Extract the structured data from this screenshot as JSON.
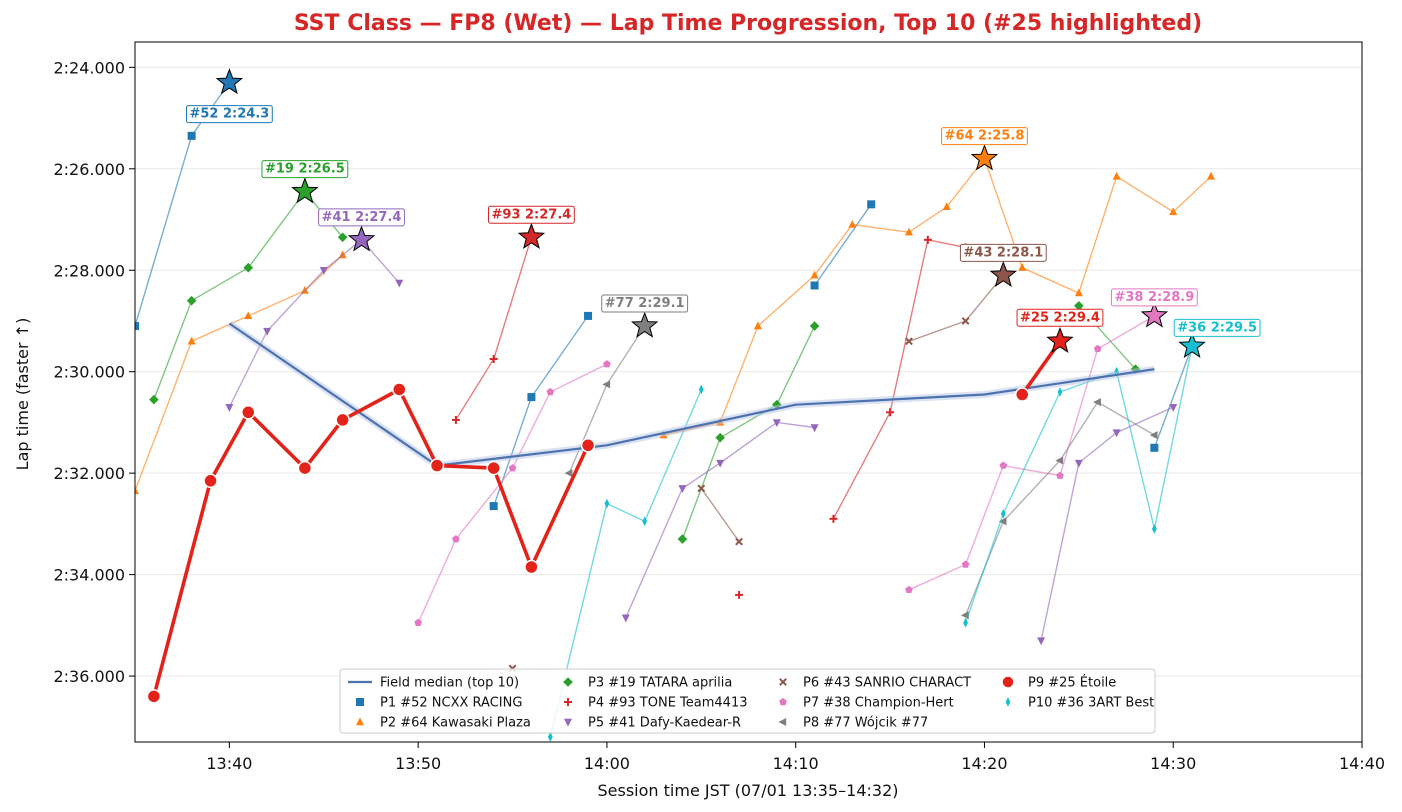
{
  "chart_data": {
    "type": "line",
    "title": "SST Class — FP8 (Wet) — Lap Time Progression, Top 10  (#25 highlighted)",
    "xlabel": "Session time JST (07/01 13:35–14:32)",
    "ylabel": "Lap time (faster ↑)",
    "x_unit": "clock time (HH:MM)",
    "y_unit": "seconds",
    "xlim": [
      "13:35",
      "14:40"
    ],
    "ylim": [
      143.5,
      157.3
    ],
    "y_inverted": true,
    "x_ticks": [
      "13:40",
      "13:50",
      "14:00",
      "14:10",
      "14:20",
      "14:30",
      "14:40"
    ],
    "y_ticks": [
      144,
      146,
      148,
      150,
      152,
      154,
      156
    ],
    "y_tick_labels": [
      "2:24.000",
      "2:26.000",
      "2:28.000",
      "2:30.000",
      "2:32.000",
      "2:34.000",
      "2:36.000"
    ],
    "grid": "horizontal",
    "legend_position": "bottom-center",
    "colors": {
      "title": "#d62728",
      "median": "#4c72b0"
    },
    "median": {
      "name": "Field median (top 10)",
      "color": "#4c72b0",
      "points": [
        [
          "13:40",
          149.05
        ],
        [
          "13:51",
          151.85
        ],
        [
          "14:00",
          151.45
        ],
        [
          "14:10",
          150.65
        ],
        [
          "14:20",
          150.45
        ],
        [
          "14:29",
          149.95
        ]
      ]
    },
    "series": [
      {
        "name": "P1 #52 NCXX RACING",
        "color": "#1f77b4",
        "marker": "square",
        "points": [
          [
            "13:35",
            149.1
          ],
          [
            "13:38",
            145.35
          ],
          [
            "13:40",
            144.3
          ]
        ],
        "extra_segments": [
          [
            [
              "13:54",
              152.65
            ],
            [
              "13:56",
              150.5
            ],
            [
              "13:59",
              148.9
            ]
          ],
          [
            [
              "14:11",
              148.3
            ],
            [
              "14:14",
              146.7
            ]
          ],
          [
            [
              "14:29",
              151.5
            ],
            [
              "14:31",
              149.5
            ]
          ]
        ],
        "best": {
          "time": "13:40",
          "value": 144.3,
          "label": "#52 2:24.3"
        }
      },
      {
        "name": "P2 #64 Kawasaki Plaza",
        "color": "#ff7f0e",
        "marker": "triangle-up",
        "points": [
          [
            "13:35",
            152.35
          ],
          [
            "13:38",
            149.4
          ],
          [
            "13:41",
            148.9
          ],
          [
            "13:44",
            148.4
          ],
          [
            "13:46",
            147.7
          ]
        ],
        "extra_segments": [
          [
            [
              "14:03",
              151.25
            ],
            [
              "14:06",
              151.0
            ],
            [
              "14:08",
              149.1
            ],
            [
              "14:11",
              148.1
            ],
            [
              "14:13",
              147.1
            ],
            [
              "14:16",
              147.25
            ],
            [
              "14:18",
              146.75
            ],
            [
              "14:20",
              145.8
            ],
            [
              "14:22",
              147.95
            ],
            [
              "14:25",
              148.45
            ],
            [
              "14:27",
              146.15
            ],
            [
              "14:30",
              146.85
            ],
            [
              "14:32",
              146.15
            ]
          ]
        ],
        "best": {
          "time": "14:20",
          "value": 145.8,
          "label": "#64 2:25.8"
        }
      },
      {
        "name": "P3 #19 TATARA aprilia",
        "color": "#2ca02c",
        "marker": "diamond",
        "points": [
          [
            "13:36",
            150.55
          ],
          [
            "13:38",
            148.6
          ],
          [
            "13:41",
            147.95
          ],
          [
            "13:44",
            146.45
          ],
          [
            "13:46",
            147.35
          ]
        ],
        "extra_segments": [
          [
            [
              "14:04",
              153.3
            ],
            [
              "14:06",
              151.3
            ],
            [
              "14:09",
              150.65
            ],
            [
              "14:11",
              149.1
            ]
          ],
          [
            [
              "14:25",
              148.7
            ],
            [
              "14:28",
              149.95
            ]
          ]
        ],
        "best": {
          "time": "13:44",
          "value": 146.45,
          "label": "#19 2:26.5"
        }
      },
      {
        "name": "P4 #93 TONE Team4413",
        "color": "#d62728",
        "marker": "plus",
        "points": [
          [
            "13:52",
            150.95
          ],
          [
            "13:54",
            149.75
          ],
          [
            "13:56",
            147.35
          ]
        ],
        "extra_segments": [
          [
            [
              "14:07",
              154.4
            ]
          ],
          [
            [
              "14:12",
              152.9
            ],
            [
              "14:15",
              150.8
            ],
            [
              "14:17",
              147.4
            ],
            [
              "14:19",
              147.55
            ]
          ]
        ],
        "best": {
          "time": "13:56",
          "value": 147.35,
          "label": "#93 2:27.4"
        }
      },
      {
        "name": "P5 #41 Dafy-Kaedear-R",
        "color": "#9467bd",
        "marker": "triangle-down",
        "points": [
          [
            "13:40",
            150.7
          ],
          [
            "13:42",
            149.2
          ],
          [
            "13:45",
            148.0
          ],
          [
            "13:47",
            147.4
          ],
          [
            "13:49",
            148.25
          ]
        ],
        "extra_segments": [
          [
            [
              "14:01",
              154.85
            ],
            [
              "14:04",
              152.3
            ],
            [
              "14:06",
              151.8
            ],
            [
              "14:09",
              151.0
            ],
            [
              "14:11",
              151.1
            ]
          ],
          [
            [
              "14:23",
              155.3
            ],
            [
              "14:25",
              151.8
            ],
            [
              "14:27",
              151.2
            ],
            [
              "14:30",
              150.7
            ]
          ]
        ],
        "best": {
          "time": "13:47",
          "value": 147.4,
          "label": "#41 2:27.4"
        }
      },
      {
        "name": "P6 #43 SANRIO CHARACT",
        "color": "#8c564b",
        "marker": "x",
        "points": [
          [
            "13:55",
            155.85
          ]
        ],
        "extra_segments": [
          [
            [
              "14:05",
              152.3
            ],
            [
              "14:07",
              153.35
            ]
          ],
          [
            [
              "14:16",
              149.4
            ],
            [
              "14:19",
              149.0
            ],
            [
              "14:21",
              148.1
            ]
          ]
        ],
        "best": {
          "time": "14:21",
          "value": 148.1,
          "label": "#43 2:28.1"
        }
      },
      {
        "name": "P7 #38 Champion-Hert",
        "color": "#e377c2",
        "marker": "pentagon",
        "points": [
          [
            "13:50",
            154.95
          ],
          [
            "13:52",
            153.3
          ],
          [
            "13:55",
            151.9
          ],
          [
            "13:57",
            150.4
          ],
          [
            "13:60",
            149.85
          ]
        ],
        "extra_segments": [
          [
            [
              "14:16",
              154.3
            ],
            [
              "14:19",
              153.8
            ],
            [
              "14:21",
              151.85
            ],
            [
              "14:24",
              152.05
            ],
            [
              "14:26",
              149.55
            ],
            [
              "14:29",
              148.9
            ]
          ]
        ],
        "best": {
          "time": "14:29",
          "value": 148.9,
          "label": "#38 2:28.9"
        }
      },
      {
        "name": "P8 #77 Wójcik #77",
        "color": "#7f7f7f",
        "marker": "triangle-left",
        "points": [
          [
            "13:58",
            152.0
          ],
          [
            "14:00",
            150.25
          ],
          [
            "14:02",
            149.1
          ]
        ],
        "extra_segments": [
          [
            [
              "14:19",
              154.8
            ],
            [
              "14:21",
              152.95
            ],
            [
              "14:24",
              151.75
            ],
            [
              "14:26",
              150.6
            ],
            [
              "14:29",
              151.25
            ]
          ]
        ],
        "best": {
          "time": "14:02",
          "value": 149.1,
          "label": "#77 2:29.1"
        }
      },
      {
        "name": "P9 #25 Étoile",
        "color": "#e32219",
        "marker": "circle",
        "highlight": true,
        "points": [
          [
            "13:36",
            156.4
          ],
          [
            "13:39",
            152.15
          ],
          [
            "13:41",
            150.8
          ],
          [
            "13:44",
            151.9
          ],
          [
            "13:46",
            150.95
          ],
          [
            "13:49",
            150.35
          ],
          [
            "13:51",
            151.85
          ],
          [
            "13:54",
            151.9
          ],
          [
            "13:56",
            153.85
          ],
          [
            "13:59",
            151.45
          ]
        ],
        "extra_segments": [
          [
            [
              "14:22",
              150.45
            ],
            [
              "14:24",
              149.4
            ]
          ]
        ],
        "best": {
          "time": "14:24",
          "value": 149.4,
          "label": "#25 2:29.4"
        }
      },
      {
        "name": "P10 #36 3ART Best",
        "color": "#17becf",
        "marker": "thin-diamond",
        "points": [
          [
            "13:57",
            157.2
          ],
          [
            "14:00",
            152.6
          ],
          [
            "14:02",
            152.95
          ],
          [
            "14:05",
            150.35
          ]
        ],
        "extra_segments": [
          [
            [
              "14:19",
              154.95
            ],
            [
              "14:21",
              152.8
            ],
            [
              "14:24",
              150.4
            ],
            [
              "14:27",
              150.0
            ],
            [
              "14:29",
              153.1
            ],
            [
              "14:31",
              149.5
            ]
          ]
        ],
        "best": {
          "time": "14:31",
          "value": 149.5,
          "label": "#36 2:29.5"
        }
      }
    ]
  }
}
